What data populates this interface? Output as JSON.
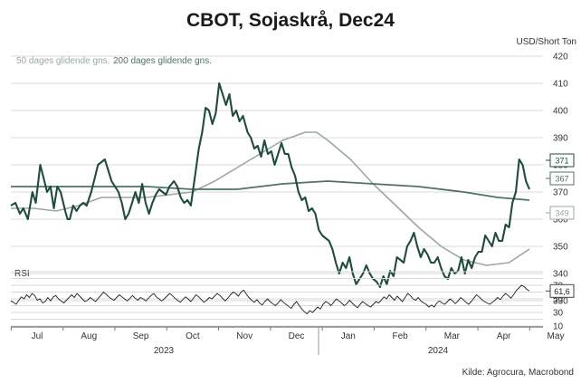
{
  "colors": {
    "price": "#1f4d3a",
    "ma50": "#9aa8a1",
    "ma200": "#4e7364",
    "rsi": "#222222",
    "grid": "#d9d9d9"
  },
  "chart_data": {
    "type": "line",
    "title": "CBOT, Sojaskrå, Dec24",
    "unit_label": "USD/Short Ton",
    "source": "Kilde: Agrocura, Macrobond",
    "x_month_labels": [
      "Jul",
      "Aug",
      "Sep",
      "Oct",
      "Nov",
      "Dec",
      "Jan",
      "Feb",
      "Mar",
      "Apr",
      "May"
    ],
    "x_year_labels": [
      "2023",
      "2024"
    ],
    "main_panel": {
      "ylim": [
        330,
        420
      ],
      "yticks": [
        330,
        340,
        350,
        360,
        370,
        380,
        390,
        400,
        410,
        420
      ],
      "grid": true,
      "legend": [
        "50 dages glidende gns.",
        "200 dages glidende gns."
      ],
      "end_labels": {
        "price": "371",
        "ma200": "367",
        "ma50": "349"
      },
      "series": [
        {
          "name": "price",
          "points": [
            [
              0.0,
              365
            ],
            [
              0.4,
              366
            ],
            [
              0.8,
              362
            ],
            [
              1.1,
              364
            ],
            [
              1.5,
              360
            ],
            [
              1.9,
              370
            ],
            [
              2.2,
              366
            ],
            [
              2.6,
              380
            ],
            [
              2.9,
              375
            ],
            [
              3.2,
              370
            ],
            [
              3.5,
              372
            ],
            [
              3.8,
              364
            ],
            [
              4.1,
              372
            ],
            [
              4.4,
              370
            ],
            [
              4.8,
              363
            ],
            [
              5.0,
              360
            ],
            [
              5.2,
              360
            ],
            [
              5.5,
              365
            ],
            [
              5.8,
              363
            ],
            [
              6.1,
              365
            ],
            [
              6.4,
              366
            ],
            [
              6.7,
              365
            ],
            [
              7.1,
              370
            ],
            [
              7.4,
              375
            ],
            [
              7.7,
              380
            ],
            [
              8.0,
              381
            ],
            [
              8.3,
              382
            ],
            [
              8.6,
              378
            ],
            [
              8.9,
              374
            ],
            [
              9.2,
              372
            ],
            [
              9.5,
              370
            ],
            [
              9.8,
              366
            ],
            [
              10.1,
              360
            ],
            [
              10.4,
              362
            ],
            [
              10.7,
              366
            ],
            [
              11.0,
              370
            ],
            [
              11.3,
              366
            ],
            [
              11.6,
              373
            ],
            [
              11.9,
              366
            ],
            [
              12.2,
              362
            ],
            [
              12.5,
              366
            ],
            [
              12.8,
              369
            ],
            [
              13.1,
              371
            ],
            [
              13.4,
              370
            ],
            [
              13.7,
              369
            ],
            [
              14.0,
              372
            ],
            [
              14.4,
              374
            ],
            [
              14.7,
              372
            ],
            [
              15.0,
              368
            ],
            [
              15.3,
              366
            ],
            [
              15.6,
              367
            ],
            [
              15.9,
              365
            ],
            [
              16.2,
              374
            ],
            [
              16.6,
              386
            ],
            [
              16.9,
              392
            ],
            [
              17.2,
              401
            ],
            [
              17.5,
              400
            ],
            [
              17.8,
              395
            ],
            [
              18.1,
              399
            ],
            [
              18.4,
              410
            ],
            [
              18.7,
              406
            ],
            [
              19.0,
              402
            ],
            [
              19.3,
              406
            ],
            [
              19.6,
              398
            ],
            [
              19.9,
              400
            ],
            [
              20.2,
              396
            ],
            [
              20.5,
              398
            ],
            [
              20.9,
              392
            ],
            [
              21.2,
              390
            ],
            [
              21.5,
              386
            ],
            [
              21.8,
              387
            ],
            [
              22.1,
              383
            ],
            [
              22.4,
              389
            ],
            [
              22.7,
              384
            ],
            [
              23.0,
              385
            ],
            [
              23.3,
              380
            ],
            [
              23.6,
              384
            ],
            [
              23.9,
              388
            ],
            [
              24.2,
              384
            ],
            [
              24.5,
              384
            ],
            [
              24.8,
              379
            ],
            [
              25.1,
              376
            ],
            [
              25.4,
              370
            ],
            [
              25.7,
              367
            ],
            [
              26.0,
              368
            ],
            [
              26.3,
              363
            ],
            [
              26.6,
              364
            ],
            [
              26.9,
              362
            ],
            [
              27.2,
              356
            ],
            [
              27.5,
              354
            ],
            [
              27.8,
              353
            ],
            [
              28.1,
              352
            ],
            [
              28.4,
              349
            ],
            [
              28.7,
              344
            ],
            [
              29.0,
              340
            ],
            [
              29.3,
              344
            ],
            [
              29.6,
              342
            ],
            [
              29.9,
              346
            ],
            [
              30.2,
              340
            ],
            [
              30.5,
              336
            ],
            [
              30.8,
              338
            ],
            [
              31.1,
              340
            ],
            [
              31.4,
              343
            ],
            [
              31.7,
              340
            ],
            [
              32.0,
              338
            ],
            [
              32.3,
              337
            ],
            [
              32.6,
              335
            ],
            [
              32.9,
              339
            ],
            [
              33.2,
              336
            ],
            [
              33.5,
              341
            ],
            [
              33.8,
              339
            ],
            [
              34.1,
              346
            ],
            [
              34.4,
              345
            ],
            [
              34.7,
              344
            ],
            [
              35.0,
              350
            ],
            [
              35.3,
              352
            ],
            [
              35.6,
              355
            ],
            [
              35.9,
              350
            ],
            [
              36.2,
              346
            ],
            [
              36.5,
              349
            ],
            [
              36.8,
              347
            ],
            [
              37.1,
              344
            ],
            [
              37.4,
              344
            ],
            [
              37.7,
              346
            ],
            [
              38.0,
              342
            ],
            [
              38.3,
              339
            ],
            [
              38.6,
              338
            ],
            [
              38.9,
              342
            ],
            [
              39.2,
              340
            ],
            [
              39.5,
              341
            ],
            [
              39.8,
              346
            ],
            [
              40.1,
              340
            ],
            [
              40.4,
              345
            ],
            [
              40.7,
              342
            ],
            [
              41.0,
              346
            ],
            [
              41.3,
              348
            ],
            [
              41.6,
              348
            ],
            [
              41.9,
              354
            ],
            [
              42.2,
              352
            ],
            [
              42.5,
              350
            ],
            [
              42.8,
              355
            ],
            [
              43.1,
              352
            ],
            [
              43.4,
              352
            ],
            [
              43.7,
              358
            ],
            [
              44.0,
              357
            ],
            [
              44.3,
              366
            ],
            [
              44.6,
              370
            ],
            [
              44.9,
              382
            ],
            [
              45.2,
              380
            ],
            [
              45.5,
              374
            ],
            [
              45.8,
              371
            ]
          ]
        },
        {
          "name": "ma50",
          "points": [
            [
              0.0,
              364
            ],
            [
              2.0,
              364
            ],
            [
              4.0,
              363
            ],
            [
              6.0,
              365
            ],
            [
              8.0,
              368
            ],
            [
              10.0,
              368
            ],
            [
              12.0,
              368
            ],
            [
              14.0,
              369
            ],
            [
              16.0,
              370
            ],
            [
              18.0,
              374
            ],
            [
              20.0,
              379
            ],
            [
              22.0,
              384
            ],
            [
              24.0,
              389
            ],
            [
              26.0,
              392
            ],
            [
              27.0,
              392
            ],
            [
              28.0,
              389
            ],
            [
              30.0,
              382
            ],
            [
              32.0,
              373
            ],
            [
              34.0,
              365
            ],
            [
              36.0,
              357
            ],
            [
              38.0,
              350
            ],
            [
              40.0,
              345
            ],
            [
              42.0,
              343
            ],
            [
              44.0,
              344
            ],
            [
              45.8,
              349
            ]
          ]
        },
        {
          "name": "ma200",
          "points": [
            [
              0.0,
              372
            ],
            [
              4.0,
              372
            ],
            [
              8.0,
              372
            ],
            [
              12.0,
              372
            ],
            [
              16.0,
              371
            ],
            [
              20.0,
              371
            ],
            [
              24.0,
              373
            ],
            [
              28.0,
              374
            ],
            [
              32.0,
              373
            ],
            [
              36.0,
              372
            ],
            [
              40.0,
              370
            ],
            [
              43.0,
              368
            ],
            [
              45.8,
              367
            ]
          ]
        }
      ]
    },
    "rsi_panel": {
      "label": "RSI",
      "ylim": [
        10,
        90
      ],
      "yticks": [
        10,
        30,
        50,
        70
      ],
      "end_label": "61,6",
      "values": [
        47,
        45,
        42,
        48,
        53,
        50,
        56,
        52,
        58,
        55,
        48,
        50,
        44,
        46,
        52,
        47,
        53,
        55,
        50,
        47,
        44,
        48,
        52,
        56,
        52,
        58,
        54,
        50,
        46,
        48,
        52,
        49,
        46,
        51,
        55,
        60,
        57,
        53,
        50,
        48,
        52,
        56,
        53,
        50,
        47,
        51,
        55,
        51,
        48,
        52,
        50,
        47,
        51,
        55,
        58,
        53,
        50,
        47,
        50,
        54,
        58,
        55,
        51,
        48,
        45,
        49,
        53,
        50,
        46,
        51,
        56,
        53,
        49,
        45,
        48,
        52,
        50,
        54,
        58,
        55,
        51,
        47,
        51,
        56,
        60,
        58,
        54,
        60,
        63,
        57,
        52,
        48,
        45,
        49,
        44,
        41,
        46,
        50,
        46,
        43,
        40,
        44,
        49,
        45,
        42,
        39,
        36,
        42,
        46,
        40,
        35,
        31,
        28,
        33,
        30,
        34,
        38,
        35,
        42,
        46,
        44,
        40,
        45,
        50,
        47,
        44,
        40,
        43,
        48,
        44,
        40,
        37,
        42,
        46,
        43,
        40,
        38,
        42,
        46,
        44,
        48,
        53,
        50,
        56,
        52,
        48,
        54,
        50,
        46,
        52,
        58,
        55,
        50,
        48,
        52,
        47,
        44,
        42,
        38,
        41,
        38,
        44,
        47,
        44,
        42,
        46,
        50,
        47,
        43,
        47,
        52,
        49,
        45,
        42,
        46,
        51,
        56,
        53,
        49,
        46,
        44,
        42,
        45,
        48,
        52,
        49,
        54,
        58,
        55,
        51,
        56,
        62,
        66,
        70,
        68,
        64,
        61.6
      ]
    }
  }
}
